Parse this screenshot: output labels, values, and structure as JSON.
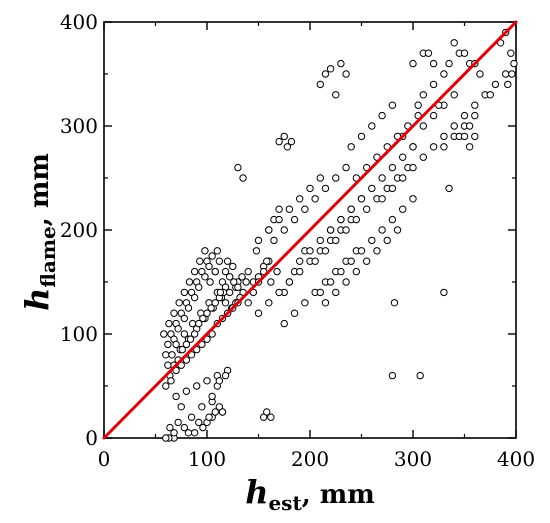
{
  "chart_data": {
    "type": "scatter",
    "xlabel": {
      "main": "h",
      "sub": "est",
      "unit": ", mm"
    },
    "ylabel": {
      "main": "h",
      "sub": "flame",
      "unit": ", mm"
    },
    "xlim": [
      0,
      400
    ],
    "ylim": [
      0,
      400
    ],
    "xticks": [
      0,
      100,
      200,
      300,
      400
    ],
    "yticks": [
      0,
      100,
      200,
      300,
      400
    ],
    "grid": false,
    "marker_color": "#000000",
    "marker_fill": "#ffffff",
    "line_color": "#e0000a",
    "reference_line": {
      "x": [
        0,
        400
      ],
      "y": [
        0,
        400
      ]
    },
    "series": [
      {
        "x": [
          60,
          62,
          65,
          68,
          70,
          72,
          75,
          78,
          80,
          82,
          85,
          88,
          90,
          92,
          95,
          98,
          100,
          102,
          105,
          108,
          110,
          112,
          115,
          118,
          120,
          122,
          125,
          128,
          130,
          135,
          140,
          145,
          150,
          155,
          160,
          62,
          66,
          70,
          74,
          78,
          82,
          86,
          90,
          94,
          98,
          102,
          106,
          110,
          114,
          118,
          122,
          126,
          130,
          134,
          138,
          64,
          68,
          72,
          76,
          80,
          84,
          88,
          92,
          96,
          100,
          104,
          108,
          112,
          116,
          120,
          124,
          128,
          132,
          60,
          65,
          70,
          75,
          80,
          85,
          90,
          95,
          100,
          105,
          110,
          115,
          120,
          125,
          130,
          58,
          63,
          68,
          73,
          78,
          83,
          88,
          93,
          98,
          103,
          108,
          113,
          118,
          70,
          80,
          90,
          100,
          110,
          120,
          95,
          105,
          115,
          85,
          75,
          100,
          105,
          108,
          112,
          96,
          88,
          92,
          115,
          102,
          140,
          145,
          150,
          155,
          160,
          165,
          170,
          150,
          148,
          158,
          162,
          168,
          175,
          180,
          185,
          190,
          195,
          150,
          160,
          170,
          180,
          190,
          200,
          210,
          220,
          230,
          240,
          175,
          185,
          195,
          205,
          215,
          225,
          235,
          245,
          160,
          170,
          180,
          190,
          200,
          210,
          220,
          230,
          240,
          250,
          165,
          175,
          185,
          195,
          205,
          215,
          225,
          235,
          200,
          210,
          220,
          230,
          240,
          250,
          260,
          270,
          280,
          290,
          300,
          205,
          215,
          225,
          235,
          245,
          255,
          265,
          275,
          285,
          295,
          210,
          220,
          230,
          240,
          250,
          260,
          270,
          280,
          290,
          300,
          215,
          225,
          235,
          245,
          255,
          265,
          275,
          285,
          240,
          250,
          260,
          270,
          280,
          290,
          300,
          310,
          320,
          330,
          340,
          245,
          255,
          265,
          275,
          285,
          295,
          305,
          270,
          280,
          290,
          300,
          310,
          320,
          330,
          340,
          350,
          360,
          370,
          380,
          390,
          330,
          340,
          350,
          360,
          335,
          345,
          355,
          365,
          325,
          375,
          300,
          310,
          320,
          330,
          350,
          360,
          340,
          345,
          355,
          210,
          215,
          220,
          225,
          230,
          235,
          305,
          310,
          315,
          320,
          355,
          360,
          385,
          390,
          395,
          398,
          392,
          396,
          330,
          335,
          280,
          282,
          307,
          350,
          155,
          158,
          162,
          78,
          82,
          68,
          63,
          105,
          110,
          112,
          118,
          60,
          64,
          68,
          72,
          170,
          175,
          178,
          182,
          130,
          135
        ],
        "y": [
          80,
          90,
          100,
          95,
          110,
          105,
          120,
          115,
          130,
          125,
          140,
          135,
          150,
          145,
          160,
          155,
          170,
          165,
          175,
          160,
          180,
          170,
          150,
          160,
          170,
          155,
          165,
          145,
          150,
          140,
          160,
          150,
          155,
          165,
          170,
          70,
          80,
          90,
          85,
          100,
          95,
          110,
          105,
          120,
          115,
          130,
          125,
          140,
          135,
          145,
          140,
          150,
          145,
          155,
          150,
          60,
          70,
          75,
          85,
          90,
          95,
          100,
          110,
          115,
          120,
          125,
          130,
          135,
          140,
          120,
          125,
          130,
          135,
          50,
          55,
          65,
          70,
          75,
          80,
          85,
          90,
          95,
          100,
          110,
          115,
          120,
          125,
          130,
          100,
          110,
          120,
          130,
          140,
          150,
          160,
          170,
          180,
          150,
          160,
          140,
          130,
          40,
          45,
          50,
          55,
          60,
          65,
          30,
          35,
          25,
          20,
          30,
          15,
          20,
          25,
          30,
          10,
          5,
          15,
          25,
          20,
          130,
          140,
          150,
          160,
          200,
          210,
          220,
          190,
          180,
          170,
          150,
          160,
          140,
          150,
          160,
          170,
          180,
          120,
          130,
          140,
          150,
          160,
          170,
          180,
          190,
          200,
          210,
          110,
          120,
          130,
          140,
          150,
          160,
          170,
          180,
          200,
          210,
          220,
          230,
          240,
          250,
          200,
          210,
          220,
          230,
          190,
          200,
          210,
          220,
          230,
          240,
          250,
          260,
          180,
          190,
          200,
          210,
          220,
          230,
          240,
          250,
          260,
          270,
          280,
          170,
          180,
          190,
          200,
          210,
          220,
          230,
          240,
          250,
          260,
          140,
          150,
          160,
          170,
          180,
          190,
          200,
          210,
          220,
          230,
          130,
          140,
          150,
          160,
          170,
          180,
          190,
          200,
          280,
          290,
          300,
          310,
          320,
          290,
          280,
          300,
          310,
          320,
          330,
          250,
          260,
          270,
          280,
          290,
          300,
          310,
          230,
          240,
          250,
          260,
          270,
          280,
          290,
          300,
          310,
          320,
          330,
          340,
          350,
          280,
          290,
          300,
          310,
          360,
          370,
          360,
          350,
          320,
          330,
          360,
          370,
          340,
          350,
          370,
          360,
          380,
          290,
          300,
          340,
          350,
          355,
          330,
          360,
          350,
          320,
          330,
          370,
          360,
          280,
          290,
          380,
          390,
          370,
          360,
          340,
          350,
          140,
          240,
          60,
          130,
          60,
          290,
          20,
          25,
          20,
          10,
          5,
          0,
          0,
          40,
          50,
          55,
          60,
          0,
          10,
          5,
          15,
          285,
          290,
          280,
          285,
          260,
          250
        ]
      }
    ]
  }
}
